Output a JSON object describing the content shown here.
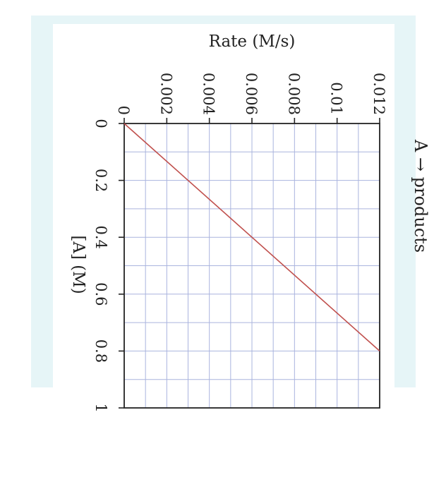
{
  "chart_data": {
    "type": "line",
    "title": "A → products",
    "xlabel": "[A] (M)",
    "ylabel": "Rate (M/s)",
    "xlim": [
      0,
      1
    ],
    "ylim": [
      0,
      0.012
    ],
    "x_ticks": [
      {
        "value": 0,
        "label": "0"
      },
      {
        "value": 0.2,
        "label": "0.2"
      },
      {
        "value": 0.4,
        "label": "0.4"
      },
      {
        "value": 0.6,
        "label": "0.6"
      },
      {
        "value": 0.8,
        "label": "0.8"
      },
      {
        "value": 1,
        "label": "1"
      }
    ],
    "y_ticks": [
      {
        "value": 0,
        "label": "0"
      },
      {
        "value": 0.002,
        "label": "0.002"
      },
      {
        "value": 0.004,
        "label": "0.004"
      },
      {
        "value": 0.006,
        "label": "0.006"
      },
      {
        "value": 0.008,
        "label": "0.008"
      },
      {
        "value": 0.01,
        "label": "0.01"
      },
      {
        "value": 0.012,
        "label": "0.012"
      }
    ],
    "grid": true,
    "orientation": "rotated-90-clockwise",
    "series": [
      {
        "color": "#c0504d",
        "x": [
          0,
          0.8
        ],
        "y": [
          0,
          0.012
        ]
      }
    ]
  },
  "colors": {
    "panel_background": "#e6f5f7",
    "grid": "#aab4de",
    "axis": "#222222",
    "line": "#c0504d"
  }
}
